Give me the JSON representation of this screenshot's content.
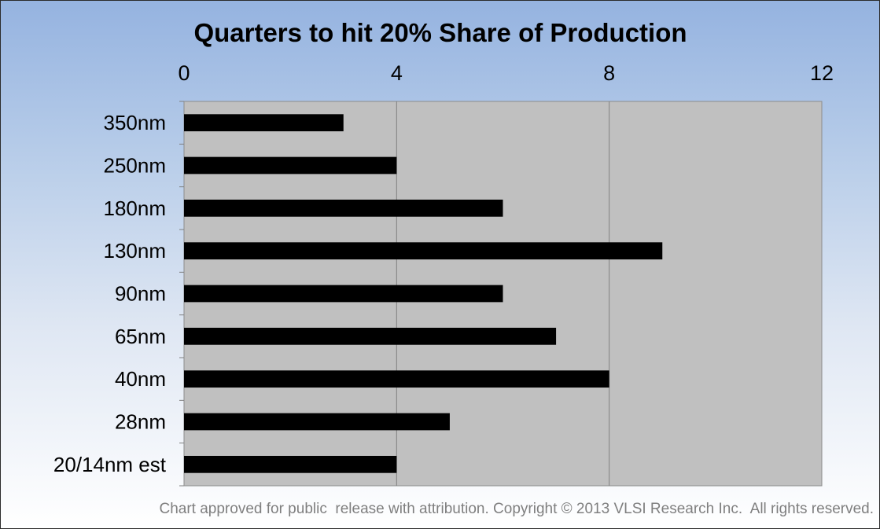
{
  "chart_data": {
    "type": "bar",
    "orientation": "horizontal",
    "title": "Quarters to hit 20% Share of Production",
    "categories": [
      "350nm",
      "250nm",
      "180nm",
      "130nm",
      "90nm",
      "65nm",
      "40nm",
      "28nm",
      "20/14nm est"
    ],
    "values": [
      3,
      4,
      6,
      9,
      6,
      7,
      8,
      5,
      4
    ],
    "xlim": [
      0,
      12
    ],
    "xticks": [
      0,
      4,
      8,
      12
    ],
    "xtick_labels": [
      "0",
      "4",
      "8",
      "12"
    ],
    "x_axis_position": "top",
    "xlabel": "",
    "ylabel": "",
    "grid": true,
    "legend": "none",
    "colors": {
      "bar": "#000000",
      "plot_background": "#c0c0c0",
      "gridline": "#808080",
      "gradient_top": "#95b3e0",
      "gradient_bottom": "#ffffff",
      "footnote": "#7f7f7f"
    }
  },
  "footnote": "Chart approved for public  release with attribution. Copyright © 2013 VLSI Research Inc.  All rights reserved."
}
